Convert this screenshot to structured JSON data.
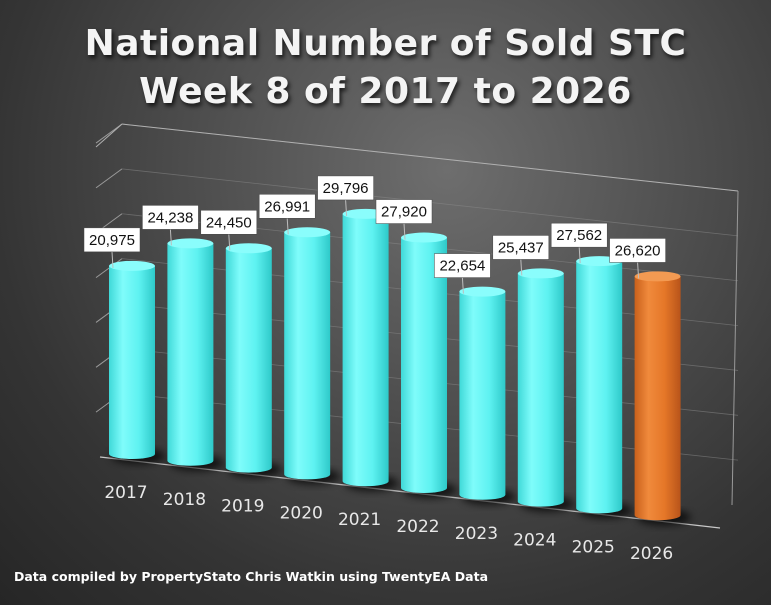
{
  "title_line1": "National Number of  Sold STC",
  "title_line2": "Week 8 of 2017 to 2026",
  "footer": "Data compiled by PropertyStato Chris Watkin using TwentyEA Data",
  "chart_data": {
    "type": "bar",
    "categories": [
      "2017",
      "2018",
      "2019",
      "2020",
      "2021",
      "2022",
      "2023",
      "2024",
      "2025",
      "2026"
    ],
    "values": [
      20975,
      24238,
      24450,
      26991,
      29796,
      27920,
      22654,
      25437,
      27562,
      26620
    ],
    "data_labels": [
      "20,975",
      "24,238",
      "24,450",
      "26,991",
      "29,796",
      "27,920",
      "22,654",
      "25,437",
      "27,562",
      "26,620"
    ],
    "ylim": [
      0,
      35000
    ],
    "grid": true,
    "legend": "none",
    "style": "3d-cylinder",
    "colors": {
      "bar": "#5ff3f1",
      "highlight_bar": "#e7792b",
      "highlight_category": "2026"
    }
  }
}
